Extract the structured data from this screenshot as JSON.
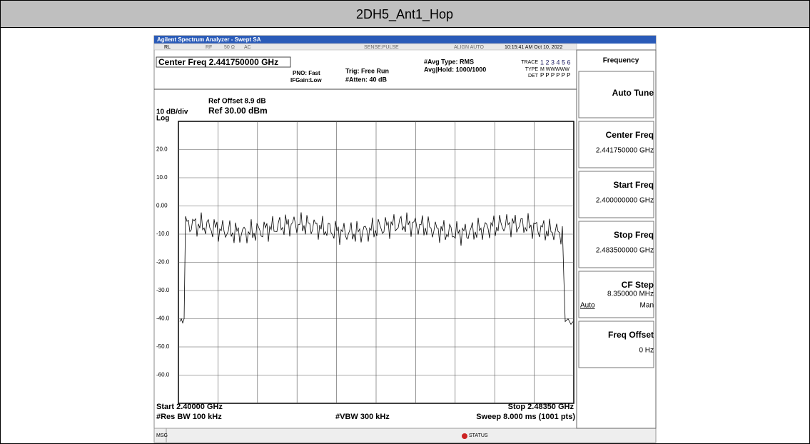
{
  "header": {
    "title": "2DH5_Ant1_Hop"
  },
  "window": {
    "title": "Agilent Spectrum Analyzer - Swept SA"
  },
  "status": {
    "rl": "RL",
    "rf": "RF",
    "impedance": "50 Ω",
    "coupling": "AC",
    "sense": "SENSE:PULSE",
    "align": "ALIGN AUTO",
    "datetime": "10:15:41 AM Oct 10, 2022"
  },
  "settings": {
    "center_freq": "Center Freq 2.441750000 GHz",
    "pno": "PNO: Fast",
    "ifgain": "IFGain:Low",
    "trig": "Trig: Free Run",
    "atten": "#Atten: 40 dB",
    "avg_type": "#Avg Type: RMS",
    "avg_hold": "Avg|Hold: 1000/1000",
    "trace_label": "TRACE",
    "trace": "1 2 3 4 5 6",
    "type_label": "TYPE",
    "type": "M WWWWW",
    "det_label": "DET",
    "det": "P P P P P P"
  },
  "plot": {
    "ref_offset": "Ref Offset 8.9 dB",
    "scale": "10 dB/div",
    "ref": "Ref 30.00 dBm",
    "log": "Log",
    "yticks": [
      "20.0",
      "10.0",
      "0.00",
      "-10.0",
      "-20.0",
      "-30.0",
      "-40.0",
      "-50.0",
      "-60.0"
    ],
    "start": "Start 2.40000 GHz",
    "stop": "Stop 2.48350 GHz",
    "rbw": "#Res BW 100 kHz",
    "vbw": "#VBW 300 kHz",
    "sweep": "Sweep  8.000 ms (1001 pts)"
  },
  "menu": {
    "title": "Frequency",
    "keys": [
      {
        "label": "Auto Tune"
      },
      {
        "label": "Center Freq",
        "value": "2.441750000 GHz"
      },
      {
        "label": "Start Freq",
        "value": "2.400000000 GHz"
      },
      {
        "label": "Stop Freq",
        "value": "2.483500000 GHz"
      },
      {
        "label": "CF Step",
        "value": "8.350000 MHz",
        "auto": "Auto",
        "man": "Man"
      },
      {
        "label": "Freq Offset",
        "value": "0 Hz"
      }
    ]
  },
  "footer": {
    "msg": "MSG",
    "status": "STATUS"
  }
}
